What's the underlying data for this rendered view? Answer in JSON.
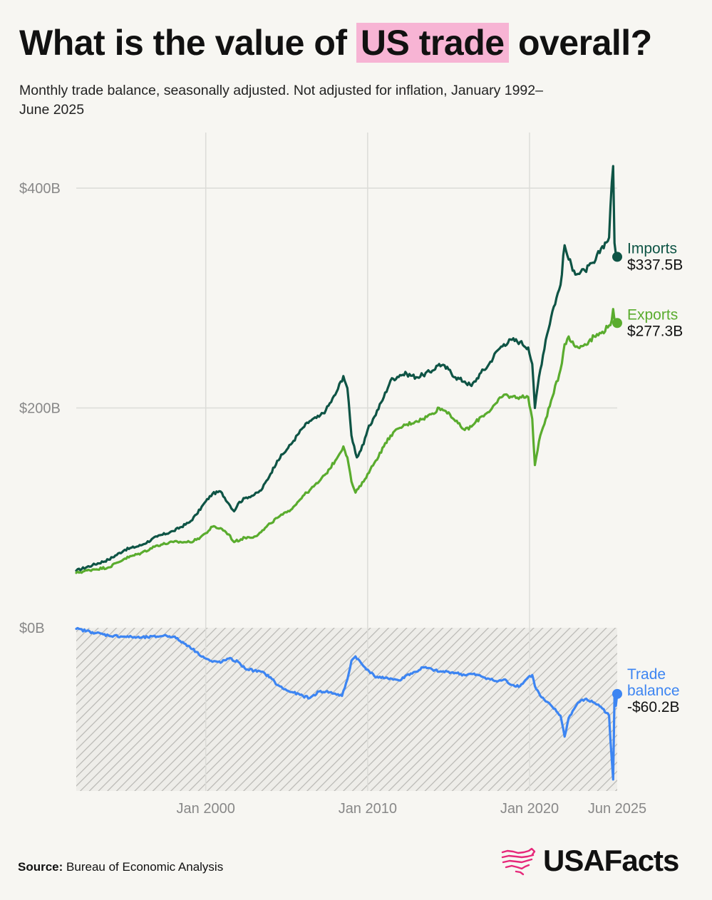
{
  "title": {
    "prefix": "What is the value of",
    "highlight": "US trade",
    "suffix": "overall?"
  },
  "subtitle": "Monthly trade balance, seasonally adjusted. Not adjusted for inflation, January 1992–June 2025",
  "source": {
    "label": "Source:",
    "text": "Bureau of Economic Analysis"
  },
  "logo": {
    "text": "USAFacts",
    "icon": "usa-map-icon"
  },
  "colors": {
    "background": "#f7f6f2",
    "imports": "#0e5445",
    "exports": "#5aac2e",
    "balance": "#3d85f2",
    "highlight": "#f7b4d4",
    "grid": "#dcdcd8",
    "axis_text": "#888888"
  },
  "chart_data": {
    "type": "line",
    "x_range": [
      "1992-01",
      "2025-06"
    ],
    "ylim": [
      -150,
      450
    ],
    "y_ticks": [
      {
        "value": 400,
        "label": "$400B"
      },
      {
        "value": 200,
        "label": "$200B"
      },
      {
        "value": 0,
        "label": "$0B"
      }
    ],
    "x_ticks": [
      {
        "value": "2000-01",
        "label": "Jan 2000"
      },
      {
        "value": "2010-01",
        "label": "Jan 2010"
      },
      {
        "value": "2020-01",
        "label": "Jan 2020"
      },
      {
        "value": "2025-06",
        "label": "Jun 2025"
      }
    ],
    "grid": true,
    "negative_region_hatched": true,
    "series": [
      {
        "name": "Imports",
        "end_label": "$337.5B",
        "color": "#0e5445",
        "points": [
          [
            "1992-01",
            52
          ],
          [
            "1993-01",
            57
          ],
          [
            "1994-01",
            62
          ],
          [
            "1995-01",
            71
          ],
          [
            "1996-01",
            75
          ],
          [
            "1997-01",
            83
          ],
          [
            "1998-01",
            88
          ],
          [
            "1999-01",
            96
          ],
          [
            "1999-06",
            103
          ],
          [
            "2000-01",
            115
          ],
          [
            "2000-06",
            122
          ],
          [
            "2000-12",
            124
          ],
          [
            "2001-06",
            113
          ],
          [
            "2001-10",
            106
          ],
          [
            "2002-01",
            113
          ],
          [
            "2002-06",
            118
          ],
          [
            "2003-01",
            121
          ],
          [
            "2003-06",
            125
          ],
          [
            "2004-01",
            140
          ],
          [
            "2004-06",
            152
          ],
          [
            "2005-01",
            162
          ],
          [
            "2005-06",
            170
          ],
          [
            "2006-01",
            182
          ],
          [
            "2006-06",
            188
          ],
          [
            "2007-01",
            192
          ],
          [
            "2007-06",
            198
          ],
          [
            "2008-01",
            212
          ],
          [
            "2008-07",
            229
          ],
          [
            "2008-10",
            218
          ],
          [
            "2009-01",
            175
          ],
          [
            "2009-05",
            155
          ],
          [
            "2009-10",
            167
          ],
          [
            "2010-01",
            180
          ],
          [
            "2010-06",
            192
          ],
          [
            "2011-01",
            210
          ],
          [
            "2011-06",
            225
          ],
          [
            "2012-01",
            230
          ],
          [
            "2012-06",
            231
          ],
          [
            "2013-01",
            228
          ],
          [
            "2013-06",
            230
          ],
          [
            "2014-01",
            234
          ],
          [
            "2014-06",
            240
          ],
          [
            "2015-01",
            235
          ],
          [
            "2015-06",
            228
          ],
          [
            "2016-01",
            224
          ],
          [
            "2016-06",
            220
          ],
          [
            "2017-01",
            232
          ],
          [
            "2017-06",
            238
          ],
          [
            "2018-01",
            252
          ],
          [
            "2018-06",
            258
          ],
          [
            "2018-12",
            262
          ],
          [
            "2019-06",
            260
          ],
          [
            "2019-12",
            255
          ],
          [
            "2020-03",
            240
          ],
          [
            "2020-05",
            200
          ],
          [
            "2020-08",
            228
          ],
          [
            "2021-01",
            262
          ],
          [
            "2021-06",
            288
          ],
          [
            "2021-12",
            312
          ],
          [
            "2022-03",
            348
          ],
          [
            "2022-06",
            335
          ],
          [
            "2022-10",
            325
          ],
          [
            "2023-01",
            322
          ],
          [
            "2023-06",
            325
          ],
          [
            "2024-01",
            332
          ],
          [
            "2024-06",
            345
          ],
          [
            "2024-12",
            355
          ],
          [
            "2025-02",
            405
          ],
          [
            "2025-03",
            420
          ],
          [
            "2025-04",
            350
          ],
          [
            "2025-05",
            340
          ],
          [
            "2025-06",
            337.5
          ]
        ]
      },
      {
        "name": "Exports",
        "end_label": "$277.3B",
        "color": "#5aac2e",
        "points": [
          [
            "1992-01",
            50
          ],
          [
            "1993-01",
            53
          ],
          [
            "1994-01",
            55
          ],
          [
            "1995-01",
            63
          ],
          [
            "1996-01",
            68
          ],
          [
            "1997-01",
            75
          ],
          [
            "1998-01",
            78
          ],
          [
            "1999-01",
            78
          ],
          [
            "1999-06",
            80
          ],
          [
            "2000-01",
            86
          ],
          [
            "2000-06",
            92
          ],
          [
            "2001-01",
            90
          ],
          [
            "2001-06",
            85
          ],
          [
            "2001-10",
            78
          ],
          [
            "2002-06",
            82
          ],
          [
            "2003-01",
            83
          ],
          [
            "2003-06",
            87
          ],
          [
            "2004-01",
            95
          ],
          [
            "2004-06",
            100
          ],
          [
            "2005-01",
            105
          ],
          [
            "2005-06",
            110
          ],
          [
            "2006-01",
            120
          ],
          [
            "2006-06",
            125
          ],
          [
            "2007-01",
            133
          ],
          [
            "2007-06",
            140
          ],
          [
            "2008-01",
            152
          ],
          [
            "2008-07",
            165
          ],
          [
            "2008-10",
            155
          ],
          [
            "2009-01",
            133
          ],
          [
            "2009-04",
            123
          ],
          [
            "2009-10",
            133
          ],
          [
            "2010-01",
            140
          ],
          [
            "2010-06",
            150
          ],
          [
            "2011-01",
            165
          ],
          [
            "2011-06",
            175
          ],
          [
            "2012-01",
            182
          ],
          [
            "2012-06",
            185
          ],
          [
            "2013-01",
            188
          ],
          [
            "2013-06",
            190
          ],
          [
            "2014-01",
            195
          ],
          [
            "2014-06",
            200
          ],
          [
            "2015-01",
            196
          ],
          [
            "2015-06",
            188
          ],
          [
            "2016-01",
            180
          ],
          [
            "2016-06",
            183
          ],
          [
            "2017-01",
            192
          ],
          [
            "2017-06",
            196
          ],
          [
            "2018-01",
            205
          ],
          [
            "2018-06",
            212
          ],
          [
            "2018-12",
            210
          ],
          [
            "2019-06",
            210
          ],
          [
            "2019-12",
            210
          ],
          [
            "2020-03",
            190
          ],
          [
            "2020-05",
            148
          ],
          [
            "2020-09",
            175
          ],
          [
            "2021-01",
            190
          ],
          [
            "2021-06",
            210
          ],
          [
            "2021-12",
            235
          ],
          [
            "2022-03",
            258
          ],
          [
            "2022-06",
            265
          ],
          [
            "2022-10",
            257
          ],
          [
            "2023-01",
            255
          ],
          [
            "2023-06",
            258
          ],
          [
            "2024-01",
            265
          ],
          [
            "2024-06",
            268
          ],
          [
            "2024-12",
            275
          ],
          [
            "2025-02",
            280
          ],
          [
            "2025-03",
            290
          ],
          [
            "2025-04",
            280
          ],
          [
            "2025-05",
            275
          ],
          [
            "2025-06",
            277.3
          ]
        ]
      },
      {
        "name": "Trade balance",
        "end_label": "-$60.2B",
        "color": "#3d85f2",
        "points": [
          [
            "1992-01",
            -1
          ],
          [
            "1993-01",
            -4
          ],
          [
            "1994-01",
            -7
          ],
          [
            "1995-01",
            -8
          ],
          [
            "1996-01",
            -9
          ],
          [
            "1997-01",
            -8
          ],
          [
            "1997-06",
            -7
          ],
          [
            "1998-01",
            -8
          ],
          [
            "1998-06",
            -12
          ],
          [
            "1999-01",
            -17
          ],
          [
            "1999-06",
            -22
          ],
          [
            "2000-01",
            -28
          ],
          [
            "2000-06",
            -31
          ],
          [
            "2001-01",
            -31
          ],
          [
            "2001-06",
            -28
          ],
          [
            "2002-01",
            -31
          ],
          [
            "2002-06",
            -37
          ],
          [
            "2003-01",
            -39
          ],
          [
            "2003-06",
            -40
          ],
          [
            "2004-01",
            -45
          ],
          [
            "2004-06",
            -52
          ],
          [
            "2005-01",
            -57
          ],
          [
            "2005-06",
            -59
          ],
          [
            "2006-01",
            -62
          ],
          [
            "2006-06",
            -64
          ],
          [
            "2007-01",
            -58
          ],
          [
            "2007-06",
            -58
          ],
          [
            "2008-01",
            -60
          ],
          [
            "2008-06",
            -62
          ],
          [
            "2008-10",
            -47
          ],
          [
            "2009-01",
            -30
          ],
          [
            "2009-04",
            -26
          ],
          [
            "2009-10",
            -35
          ],
          [
            "2010-01",
            -38
          ],
          [
            "2010-06",
            -44
          ],
          [
            "2011-01",
            -46
          ],
          [
            "2011-06",
            -46
          ],
          [
            "2012-01",
            -48
          ],
          [
            "2012-06",
            -43
          ],
          [
            "2013-01",
            -40
          ],
          [
            "2013-06",
            -36
          ],
          [
            "2014-01",
            -38
          ],
          [
            "2014-06",
            -40
          ],
          [
            "2015-01",
            -40
          ],
          [
            "2015-06",
            -41
          ],
          [
            "2016-01",
            -43
          ],
          [
            "2016-06",
            -42
          ],
          [
            "2017-01",
            -44
          ],
          [
            "2017-06",
            -46
          ],
          [
            "2018-01",
            -49
          ],
          [
            "2018-06",
            -47
          ],
          [
            "2018-12",
            -52
          ],
          [
            "2019-06",
            -53
          ],
          [
            "2019-12",
            -45
          ],
          [
            "2020-03",
            -43
          ],
          [
            "2020-05",
            -53
          ],
          [
            "2020-09",
            -62
          ],
          [
            "2021-01",
            -67
          ],
          [
            "2021-06",
            -72
          ],
          [
            "2021-12",
            -80
          ],
          [
            "2022-03",
            -99
          ],
          [
            "2022-06",
            -82
          ],
          [
            "2022-10",
            -74
          ],
          [
            "2023-01",
            -68
          ],
          [
            "2023-06",
            -65
          ],
          [
            "2024-01",
            -68
          ],
          [
            "2024-06",
            -72
          ],
          [
            "2024-12",
            -80
          ],
          [
            "2025-01",
            -102
          ],
          [
            "2025-02",
            -120
          ],
          [
            "2025-03",
            -138
          ],
          [
            "2025-04",
            -62
          ],
          [
            "2025-05",
            -71
          ],
          [
            "2025-06",
            -60.2
          ]
        ]
      }
    ]
  }
}
